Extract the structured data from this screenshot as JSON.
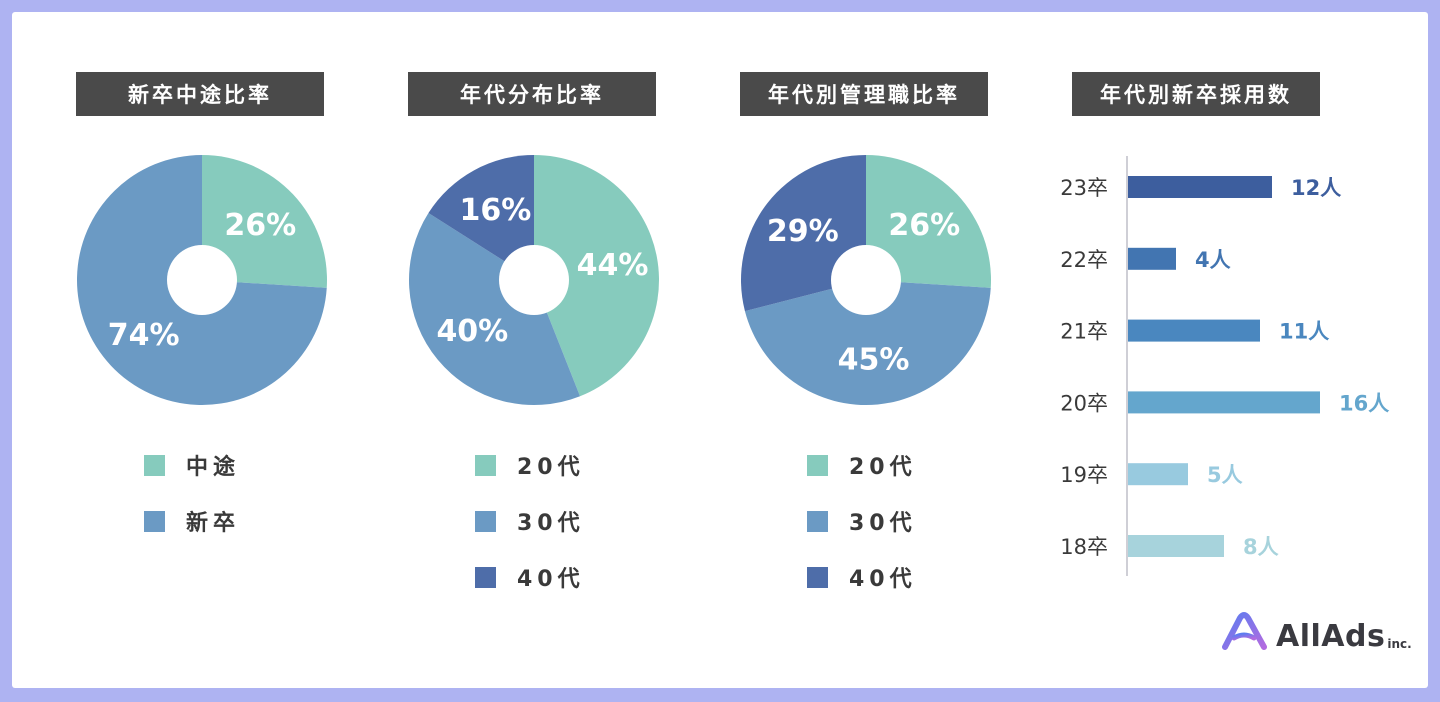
{
  "chart_data": [
    {
      "type": "pie",
      "title": "新卒中途比率",
      "slices": [
        {
          "label": "中途",
          "value": 26,
          "display": "26%",
          "color": "#86cbbd"
        },
        {
          "label": "新卒",
          "value": 74,
          "display": "74%",
          "color": "#6b9ac4"
        }
      ]
    },
    {
      "type": "pie",
      "title": "年代分布比率",
      "slices": [
        {
          "label": "20代",
          "value": 44,
          "display": "44%",
          "color": "#86cbbd"
        },
        {
          "label": "30代",
          "value": 40,
          "display": "40%",
          "color": "#6b9ac4"
        },
        {
          "label": "40代",
          "value": 16,
          "display": "16%",
          "color": "#4e6da9"
        }
      ]
    },
    {
      "type": "pie",
      "title": "年代別管理職比率",
      "slices": [
        {
          "label": "20代",
          "value": 26,
          "display": "26%",
          "color": "#86cbbd"
        },
        {
          "label": "30代",
          "value": 45,
          "display": "45%",
          "color": "#6b9ac4"
        },
        {
          "label": "40代",
          "value": 29,
          "display": "29%",
          "color": "#4e6da9"
        }
      ]
    },
    {
      "type": "bar",
      "orientation": "horizontal",
      "title": "年代別新卒採用数",
      "categories": [
        "23卒",
        "22卒",
        "21卒",
        "20卒",
        "19卒",
        "18卒"
      ],
      "values": [
        12,
        4,
        11,
        16,
        5,
        8
      ],
      "value_labels": [
        "12人",
        "4人",
        "11人",
        "16人",
        "5人",
        "8人"
      ],
      "colors": [
        "#3d5e9e",
        "#4275b1",
        "#4a87bf",
        "#64a6cd",
        "#98cadf",
        "#a7d3dc"
      ],
      "xlim": [
        0,
        16
      ]
    }
  ],
  "logo": {
    "name": "AllAds",
    "suffix": "inc."
  }
}
